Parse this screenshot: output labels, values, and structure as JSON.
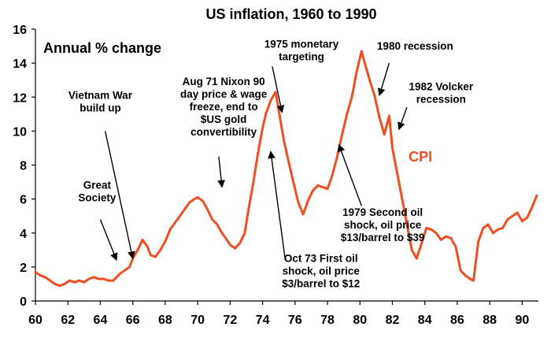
{
  "chart_data": {
    "type": "line",
    "title": "US inflation, 1960 to 1990",
    "subtitle": "Annual % change",
    "xlim": [
      60,
      91
    ],
    "ylim": [
      0,
      16
    ],
    "xticks": [
      "60",
      "62",
      "64",
      "66",
      "68",
      "70",
      "72",
      "74",
      "76",
      "78",
      "80",
      "82",
      "84",
      "86",
      "88",
      "90"
    ],
    "yticks": [
      "0",
      "2",
      "4",
      "6",
      "8",
      "10",
      "12",
      "14",
      "16"
    ],
    "series": [
      {
        "name": "CPI",
        "color": "#F04E23",
        "x": [
          60.0,
          60.3,
          60.6,
          60.9,
          61.2,
          61.5,
          61.8,
          62.1,
          62.4,
          62.7,
          63.0,
          63.3,
          63.6,
          63.9,
          64.2,
          64.5,
          64.8,
          65.0,
          65.2,
          65.5,
          65.8,
          66.0,
          66.3,
          66.6,
          66.9,
          67.1,
          67.4,
          67.7,
          68.0,
          68.3,
          68.6,
          68.9,
          69.2,
          69.5,
          69.8,
          70.0,
          70.3,
          70.6,
          70.9,
          71.2,
          71.5,
          71.8,
          72.0,
          72.3,
          72.6,
          72.9,
          73.1,
          73.4,
          73.7,
          74.0,
          74.2,
          74.5,
          74.8,
          75.0,
          75.3,
          75.6,
          75.9,
          76.2,
          76.5,
          76.8,
          77.1,
          77.4,
          77.7,
          78.0,
          78.3,
          78.6,
          78.9,
          79.2,
          79.5,
          79.8,
          80.1,
          80.3,
          80.6,
          80.9,
          81.2,
          81.5,
          81.8,
          82.0,
          82.3,
          82.6,
          82.9,
          83.2,
          83.5,
          83.8,
          84.1,
          84.4,
          84.7,
          85.0,
          85.3,
          85.6,
          85.9,
          86.2,
          86.5,
          86.8,
          87.0,
          87.3,
          87.6,
          87.9,
          88.2,
          88.5,
          88.8,
          89.1,
          89.4,
          89.7,
          90.0,
          90.3,
          90.6,
          90.9
        ],
        "values": [
          1.7,
          1.5,
          1.4,
          1.2,
          1.0,
          0.9,
          1.0,
          1.2,
          1.1,
          1.2,
          1.1,
          1.3,
          1.4,
          1.3,
          1.3,
          1.2,
          1.2,
          1.4,
          1.6,
          1.8,
          2.0,
          2.5,
          3.0,
          3.6,
          3.2,
          2.7,
          2.6,
          3.0,
          3.5,
          4.2,
          4.6,
          5.0,
          5.4,
          5.8,
          6.0,
          6.1,
          5.9,
          5.4,
          4.8,
          4.5,
          4.0,
          3.6,
          3.3,
          3.1,
          3.4,
          4.0,
          5.2,
          6.8,
          8.6,
          10.2,
          11.0,
          11.8,
          12.3,
          11.2,
          9.5,
          8.2,
          7.0,
          5.8,
          5.1,
          5.9,
          6.5,
          6.8,
          6.7,
          6.6,
          7.4,
          8.5,
          9.8,
          11.0,
          12.0,
          13.5,
          14.7,
          14.0,
          13.0,
          12.1,
          10.8,
          9.8,
          10.9,
          9.0,
          7.5,
          6.0,
          4.5,
          3.0,
          2.5,
          3.4,
          4.3,
          4.2,
          4.0,
          3.6,
          3.8,
          3.7,
          3.2,
          1.8,
          1.5,
          1.3,
          1.2,
          3.5,
          4.3,
          4.5,
          4.0,
          4.2,
          4.3,
          4.8,
          5.0,
          5.2,
          4.7,
          4.9,
          5.5,
          6.2
        ],
        "label_position": {
          "x": 83.0,
          "y": 8.2
        }
      }
    ],
    "annotations": [
      {
        "lines": [
          "Great",
          "Society"
        ],
        "text_at": {
          "x": 63.8,
          "y": 6.6
        },
        "arrow_from": {
          "x": 64.0,
          "y": 4.8
        },
        "arrow_to": {
          "x": 65.0,
          "y": 2.4
        }
      },
      {
        "lines": [
          "Vietnam War",
          "build up"
        ],
        "text_at": {
          "x": 64.0,
          "y": 11.9
        },
        "arrow_from": {
          "x": 64.3,
          "y": 10.0
        },
        "arrow_to": {
          "x": 66.0,
          "y": 2.5
        }
      },
      {
        "lines": [
          "Aug 71 Nixon 90",
          "day price & wage",
          "freeze, end to",
          "$US gold",
          "convertibility"
        ],
        "text_at": {
          "x": 71.6,
          "y": 12.7
        },
        "arrow_from": {
          "x": 71.3,
          "y": 8.5
        },
        "arrow_to": {
          "x": 71.5,
          "y": 6.7
        }
      },
      {
        "lines": [
          "1975 monetary",
          "targeting"
        ],
        "text_at": {
          "x": 76.4,
          "y": 14.9
        },
        "arrow_from": {
          "x": 74.6,
          "y": 13.8
        },
        "arrow_to": {
          "x": 75.2,
          "y": 11.1
        }
      },
      {
        "lines": [
          "1980 recession"
        ],
        "text_at": {
          "x": 83.4,
          "y": 14.8
        },
        "arrow_from": {
          "x": 81.8,
          "y": 14.0
        },
        "arrow_to": {
          "x": 81.2,
          "y": 12.1
        }
      },
      {
        "lines": [
          "1982 Volcker",
          "recession"
        ],
        "text_at": {
          "x": 85.0,
          "y": 12.4
        },
        "arrow_from": {
          "x": 82.9,
          "y": 11.4
        },
        "arrow_to": {
          "x": 82.4,
          "y": 10.1
        }
      },
      {
        "lines": [
          "Oct 73 First oil",
          "shock, oil price",
          "$3/barrel to $12"
        ],
        "text_at": {
          "x": 77.6,
          "y": 2.3
        },
        "arrow_from": {
          "x": 75.4,
          "y": 2.4
        },
        "arrow_to": {
          "x": 74.5,
          "y": 8.8
        }
      },
      {
        "lines": [
          "1979 Second oil",
          "shock, oil price",
          "$13/barrel to $39"
        ],
        "text_at": {
          "x": 81.4,
          "y": 5.0
        },
        "arrow_from": {
          "x": 80.1,
          "y": 5.6
        },
        "arrow_to": {
          "x": 78.7,
          "y": 9.2
        }
      }
    ]
  }
}
